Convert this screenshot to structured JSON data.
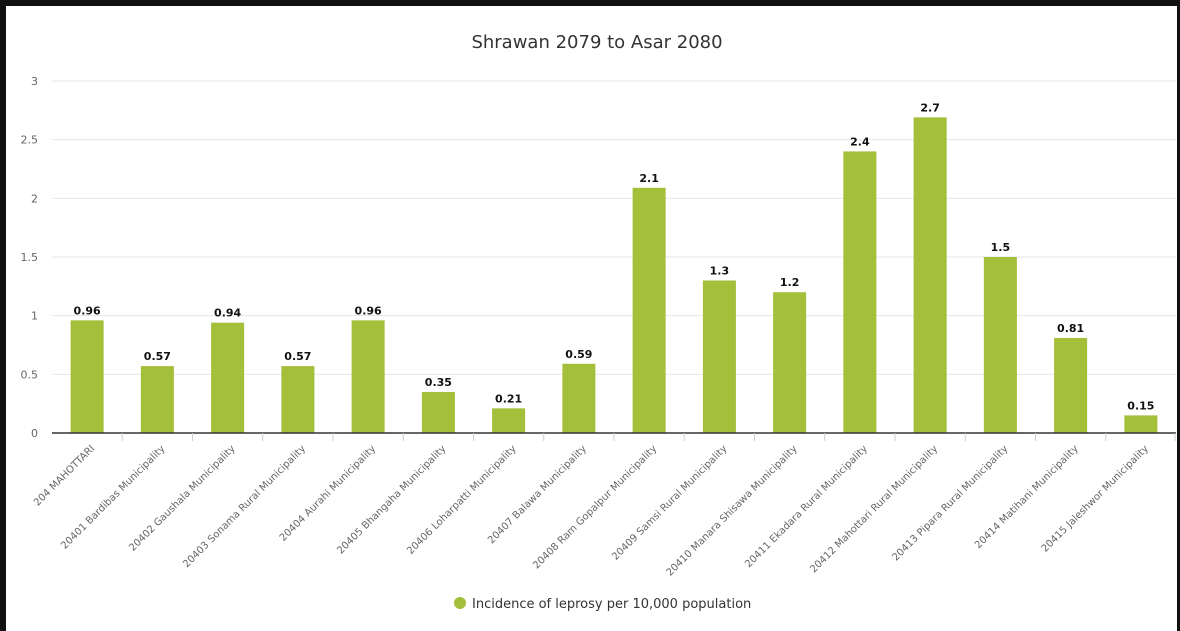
{
  "chart_data": {
    "type": "bar",
    "title": "Shrawan 2079 to Asar 2080",
    "xlabel": "",
    "ylabel": "",
    "ylim": [
      0,
      3
    ],
    "yticks": [
      0,
      0.5,
      1,
      1.5,
      2,
      2.5,
      3
    ],
    "ytick_labels": [
      "0",
      "0.5",
      "1",
      "1.5",
      "2",
      "2.5",
      "3"
    ],
    "grid": true,
    "legend_position": "bottom-center",
    "categories": [
      "204 MAHOTTARI",
      "20401 Bardibas Municipality",
      "20402 Gaushala Municipality",
      "20403 Sonama Rural Municipality",
      "20404 Aurahi Municipality",
      "20405 Bhangaha Municipality",
      "20406 Loharpatti Municipality",
      "20407 Balawa Municipality",
      "20408 Ram Gopalpur Municipality",
      "20409 Samsi Rural Municipality",
      "20410 Manara Shisawa Municipality",
      "20411 Ekadara Rural Municipality",
      "20412 Mahottari Rural Municipality",
      "20413 Pipara Rural Municipality",
      "20414 Matihani Municipality",
      "20415 Jaleshwor Municipality"
    ],
    "series": [
      {
        "name": "Incidence of leprosy per 10,000 population",
        "color": "#a4bf3a",
        "values": [
          0.96,
          0.57,
          0.94,
          0.57,
          0.96,
          0.35,
          0.21,
          0.59,
          2.09,
          1.3,
          1.2,
          2.4,
          2.69,
          1.5,
          0.81,
          0.15
        ],
        "labels": [
          "0.96",
          "0.57",
          "0.94",
          "0.57",
          "0.96",
          "0.35",
          "0.21",
          "0.59",
          "2.1",
          "1.3",
          "1.2",
          "2.4",
          "2.7",
          "1.5",
          "0.81",
          "0.15"
        ]
      }
    ]
  }
}
